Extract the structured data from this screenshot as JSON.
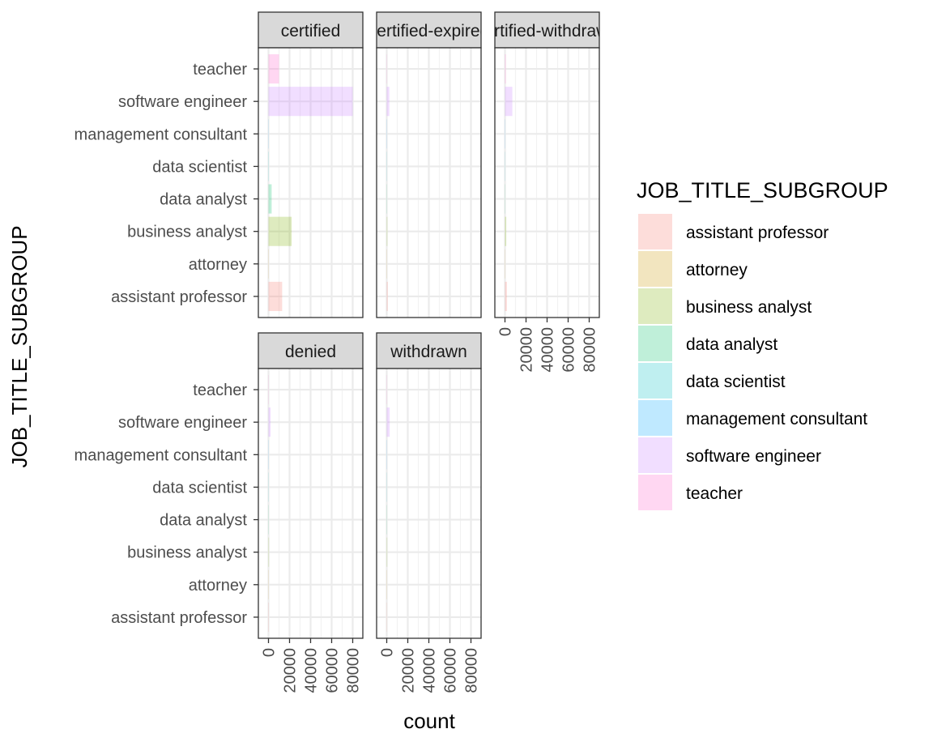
{
  "chart_data": {
    "type": "bar",
    "orientation": "horizontal",
    "facet_by": "CASE_STATUS",
    "xlabel": "count",
    "ylabel": "JOB_TITLE_SUBGROUP",
    "xlim": [
      -5000,
      85000
    ],
    "x_ticks": [
      0,
      20000,
      40000,
      60000,
      80000
    ],
    "x_tick_labels": [
      "0",
      "20000",
      "40000",
      "60000",
      "80000"
    ],
    "categories": [
      "assistant professor",
      "attorney",
      "business analyst",
      "data analyst",
      "data scientist",
      "management consultant",
      "software engineer",
      "teacher"
    ],
    "grid": true,
    "legend": {
      "title": "JOB_TITLE_SUBGROUP",
      "position": "right",
      "entries": [
        {
          "label": "assistant professor",
          "color": "#F8766D"
        },
        {
          "label": "attorney",
          "color": "#CD9600"
        },
        {
          "label": "business analyst",
          "color": "#7CAE00"
        },
        {
          "label": "data analyst",
          "color": "#00BE67"
        },
        {
          "label": "data scientist",
          "color": "#00BFC4"
        },
        {
          "label": "management consultant",
          "color": "#00A9FF"
        },
        {
          "label": "software engineer",
          "color": "#C77CFF"
        },
        {
          "label": "teacher",
          "color": "#FF61CC"
        }
      ]
    },
    "bar_opacity": 0.25,
    "facets": [
      {
        "label": "certified",
        "values": [
          13000,
          150,
          22000,
          3000,
          400,
          300,
          80000,
          10000
        ]
      },
      {
        "label": "certified-expired",
        "values": [
          1000,
          100,
          600,
          150,
          30,
          30,
          2500,
          200
        ]
      },
      {
        "label": "certified-withdrawn",
        "values": [
          1800,
          30,
          1200,
          200,
          30,
          20,
          7000,
          800
        ]
      },
      {
        "label": "denied",
        "values": [
          400,
          100,
          500,
          150,
          50,
          50,
          2000,
          300
        ]
      },
      {
        "label": "withdrawn",
        "values": [
          300,
          50,
          500,
          100,
          30,
          20,
          2800,
          200
        ]
      }
    ]
  }
}
